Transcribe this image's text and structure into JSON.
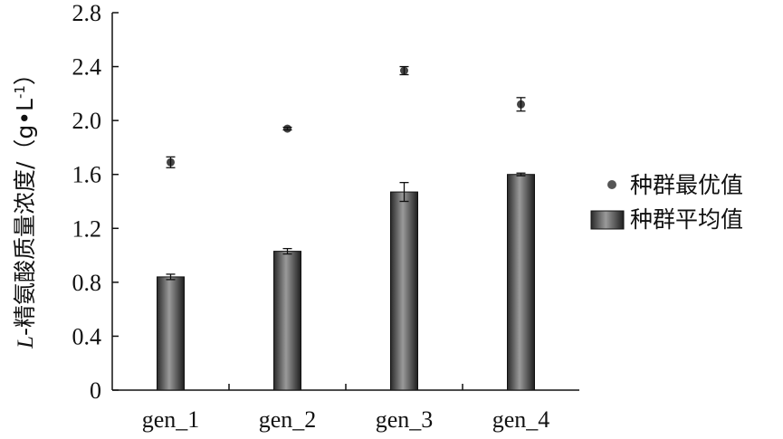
{
  "chart_data": {
    "type": "bar",
    "title": "",
    "xlabel": "",
    "ylabel": {
      "italic": "L",
      "rest": "-精氨酸质量浓度/（g•L",
      "sup": "-1",
      "close": "）"
    },
    "ylim": [
      0,
      2.8
    ],
    "yticks": [
      "0",
      "0.4",
      "0.8",
      "1.2",
      "1.6",
      "2.0",
      "2.4",
      "2.8"
    ],
    "categories": [
      "gen_1",
      "gen_2",
      "gen_3",
      "gen_4"
    ],
    "series": [
      {
        "name": "种群平均值",
        "kind": "bar",
        "values": [
          0.84,
          1.03,
          1.47,
          1.6
        ],
        "errors": [
          0.02,
          0.02,
          0.07,
          0.01
        ]
      },
      {
        "name": "种群最优值",
        "kind": "point",
        "values": [
          1.69,
          1.94,
          2.37,
          2.12
        ],
        "errors": [
          0.04,
          0.01,
          0.03,
          0.05
        ]
      }
    ],
    "grid": false,
    "legend_position": "right"
  }
}
